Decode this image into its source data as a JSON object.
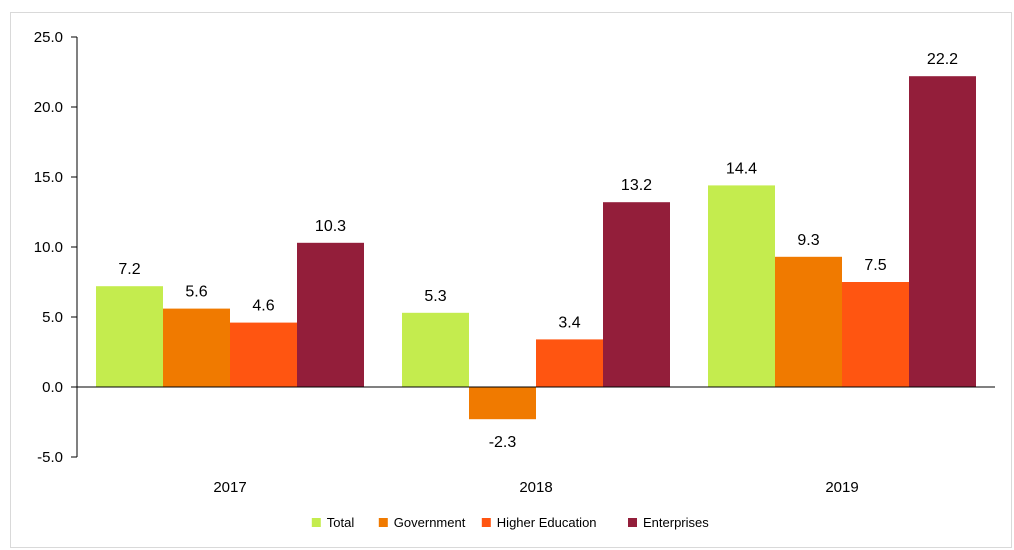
{
  "chart_data": {
    "type": "bar",
    "categories": [
      "2017",
      "2018",
      "2019"
    ],
    "series": [
      {
        "name": "Total",
        "values": [
          7.2,
          5.3,
          14.4
        ],
        "color": "#c4ec4e"
      },
      {
        "name": "Government",
        "values": [
          5.6,
          -2.3,
          9.3
        ],
        "color": "#f07a00"
      },
      {
        "name": "Higher Education",
        "values": [
          4.6,
          3.4,
          7.5
        ],
        "color": "#ff5511"
      },
      {
        "name": "Enterprises",
        "values": [
          10.3,
          13.2,
          22.2
        ],
        "color": "#931e3a"
      }
    ],
    "data_labels": [
      [
        "7.2",
        "5.3",
        "14.4"
      ],
      [
        "5.6",
        "-2.3",
        "9.3"
      ],
      [
        "4.6",
        "3.4",
        "7.5"
      ],
      [
        "10.3",
        "13.2",
        "22.2"
      ]
    ],
    "yticks": [
      -5.0,
      0.0,
      5.0,
      10.0,
      15.0,
      20.0,
      25.0
    ],
    "ytick_labels": [
      "-5.0",
      "0.0",
      "5.0",
      "10.0",
      "15.0",
      "20.0",
      "25.0"
    ],
    "ylim": [
      -5,
      25
    ],
    "grid": false,
    "legend_position": "bottom",
    "title": "",
    "xlabel": "",
    "ylabel": ""
  }
}
